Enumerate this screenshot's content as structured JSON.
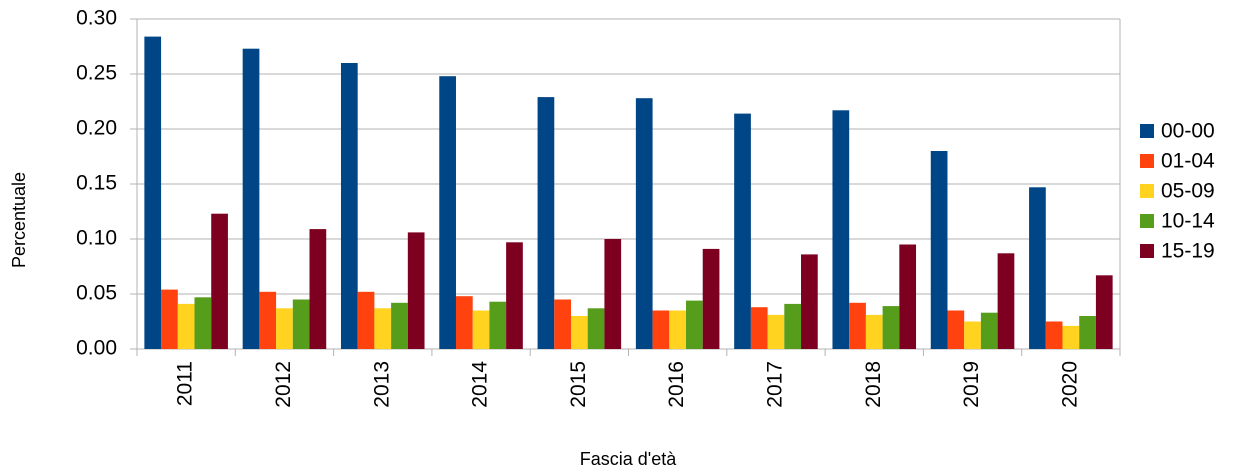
{
  "chart_data": {
    "type": "bar",
    "xlabel": "Fascia d'età",
    "ylabel": "Percentuale",
    "categories": [
      "2011",
      "2012",
      "2013",
      "2014",
      "2015",
      "2016",
      "2017",
      "2018",
      "2019",
      "2020"
    ],
    "series": [
      {
        "name": "00-00",
        "color": "#004586",
        "values": [
          0.284,
          0.273,
          0.26,
          0.248,
          0.229,
          0.228,
          0.214,
          0.217,
          0.18,
          0.147
        ]
      },
      {
        "name": "01-04",
        "color": "#ff420e",
        "values": [
          0.054,
          0.052,
          0.052,
          0.048,
          0.045,
          0.035,
          0.038,
          0.042,
          0.035,
          0.025
        ]
      },
      {
        "name": "05-09",
        "color": "#ffd320",
        "values": [
          0.041,
          0.037,
          0.037,
          0.035,
          0.03,
          0.035,
          0.031,
          0.031,
          0.025,
          0.021
        ]
      },
      {
        "name": "10-14",
        "color": "#579d1c",
        "values": [
          0.047,
          0.045,
          0.042,
          0.043,
          0.037,
          0.044,
          0.041,
          0.039,
          0.033,
          0.03
        ]
      },
      {
        "name": "15-19",
        "color": "#7e0021",
        "values": [
          0.123,
          0.109,
          0.106,
          0.097,
          0.1,
          0.091,
          0.086,
          0.095,
          0.087,
          0.067
        ]
      }
    ],
    "ylim": [
      0,
      0.3
    ],
    "yticks": [
      {
        "value": 0,
        "label": "0.00"
      },
      {
        "value": 0.05,
        "label": "0.05"
      },
      {
        "value": 0.1,
        "label": "0.10"
      },
      {
        "value": 0.15,
        "label": "0.15"
      },
      {
        "value": 0.2,
        "label": "0.20"
      },
      {
        "value": 0.25,
        "label": "0.25"
      },
      {
        "value": 0.3,
        "label": "0.30"
      }
    ],
    "grid": true,
    "legend": "right"
  }
}
